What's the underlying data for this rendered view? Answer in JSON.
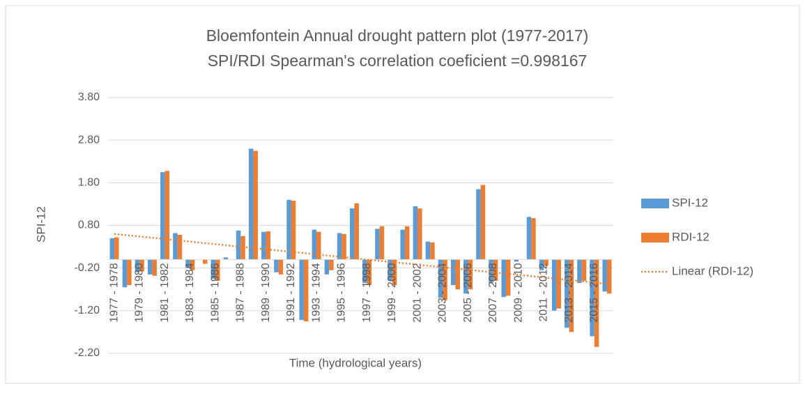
{
  "chart_data": {
    "type": "bar",
    "title": "Bloemfontein Annual drought pattern plot (1977-2017)",
    "subtitle": "SPI/RDI Spearman's correlation coeficient =0.998167",
    "y_label": "SPI-12",
    "x_label": "Time (hydrological years)",
    "categories": [
      "1977 - 1978",
      null,
      "1979 - 1980",
      null,
      "1981 - 1982",
      null,
      "1983 - 1984",
      null,
      "1985 - 1986",
      null,
      "1987 - 1988",
      null,
      "1989 - 1990",
      null,
      "1991 - 1992",
      null,
      "1993 - 1994",
      null,
      "1995 - 1996",
      null,
      "1997 - 1998",
      null,
      "1999 - 2000",
      null,
      "2001 - 2002",
      null,
      "2003 - 2004",
      null,
      "2005 - 2006",
      null,
      "2007 - 2008",
      null,
      "2009 - 2010",
      null,
      "2011 - 2012",
      null,
      "2013 - 2014",
      null,
      "2015 - 2016",
      null
    ],
    "series": [
      {
        "name": "SPI-12",
        "color": "#5b9bd5",
        "kind": "bar",
        "values": [
          0.5,
          -0.65,
          -0.3,
          -0.35,
          2.05,
          0.62,
          -0.2,
          0,
          -0.45,
          0.05,
          0.68,
          2.6,
          0.65,
          -0.3,
          1.4,
          -1.42,
          0.7,
          -0.35,
          0.62,
          1.2,
          -0.55,
          0.72,
          -0.5,
          0.7,
          1.25,
          0.42,
          -0.9,
          -0.6,
          -0.8,
          1.65,
          -0.55,
          -0.88,
          -0.05,
          1.0,
          -0.25,
          -1.2,
          -1.6,
          -0.55,
          -1.8,
          -0.75
        ]
      },
      {
        "name": "RDI-12",
        "color": "#ed7d31",
        "kind": "bar",
        "values": [
          0.52,
          -0.6,
          -0.28,
          -0.38,
          2.08,
          0.58,
          -0.25,
          -0.1,
          -0.5,
          0,
          0.55,
          2.55,
          0.66,
          -0.35,
          1.38,
          -1.45,
          0.65,
          -0.25,
          0.6,
          1.32,
          -0.6,
          0.78,
          -0.6,
          0.78,
          1.2,
          0.4,
          -0.95,
          -0.7,
          -0.7,
          1.75,
          -0.5,
          -0.85,
          0,
          0.97,
          -0.15,
          -1.15,
          -1.7,
          -0.5,
          -2.05,
          -0.8
        ]
      },
      {
        "name": "Linear (RDI-12)",
        "color": "#ed7d31",
        "kind": "trend",
        "values": [
          0.6,
          0.57,
          0.54,
          0.51,
          0.48,
          0.45,
          0.42,
          0.39,
          0.36,
          0.33,
          0.3,
          0.27,
          0.24,
          0.21,
          0.18,
          0.15,
          0.12,
          0.09,
          0.06,
          0.03,
          0,
          -0.03,
          -0.06,
          -0.09,
          -0.12,
          -0.15,
          -0.18,
          -0.21,
          -0.24,
          -0.27,
          -0.3,
          -0.33,
          -0.36,
          -0.39,
          -0.42,
          -0.45,
          -0.48,
          -0.51,
          -0.54,
          -0.57
        ]
      }
    ],
    "ylim": [
      -2.2,
      3.8
    ],
    "yticks": [
      {
        "value": -2.2,
        "label": "-2.20"
      },
      {
        "value": -1.2,
        "label": "-1.20"
      },
      {
        "value": -0.2,
        "label": "-0.20"
      },
      {
        "value": 0.8,
        "label": "0.80"
      },
      {
        "value": 1.8,
        "label": "1.80"
      },
      {
        "value": 2.8,
        "label": "2.80"
      },
      {
        "value": 3.8,
        "label": "3.80"
      }
    ],
    "grid": true,
    "legend": "right"
  }
}
